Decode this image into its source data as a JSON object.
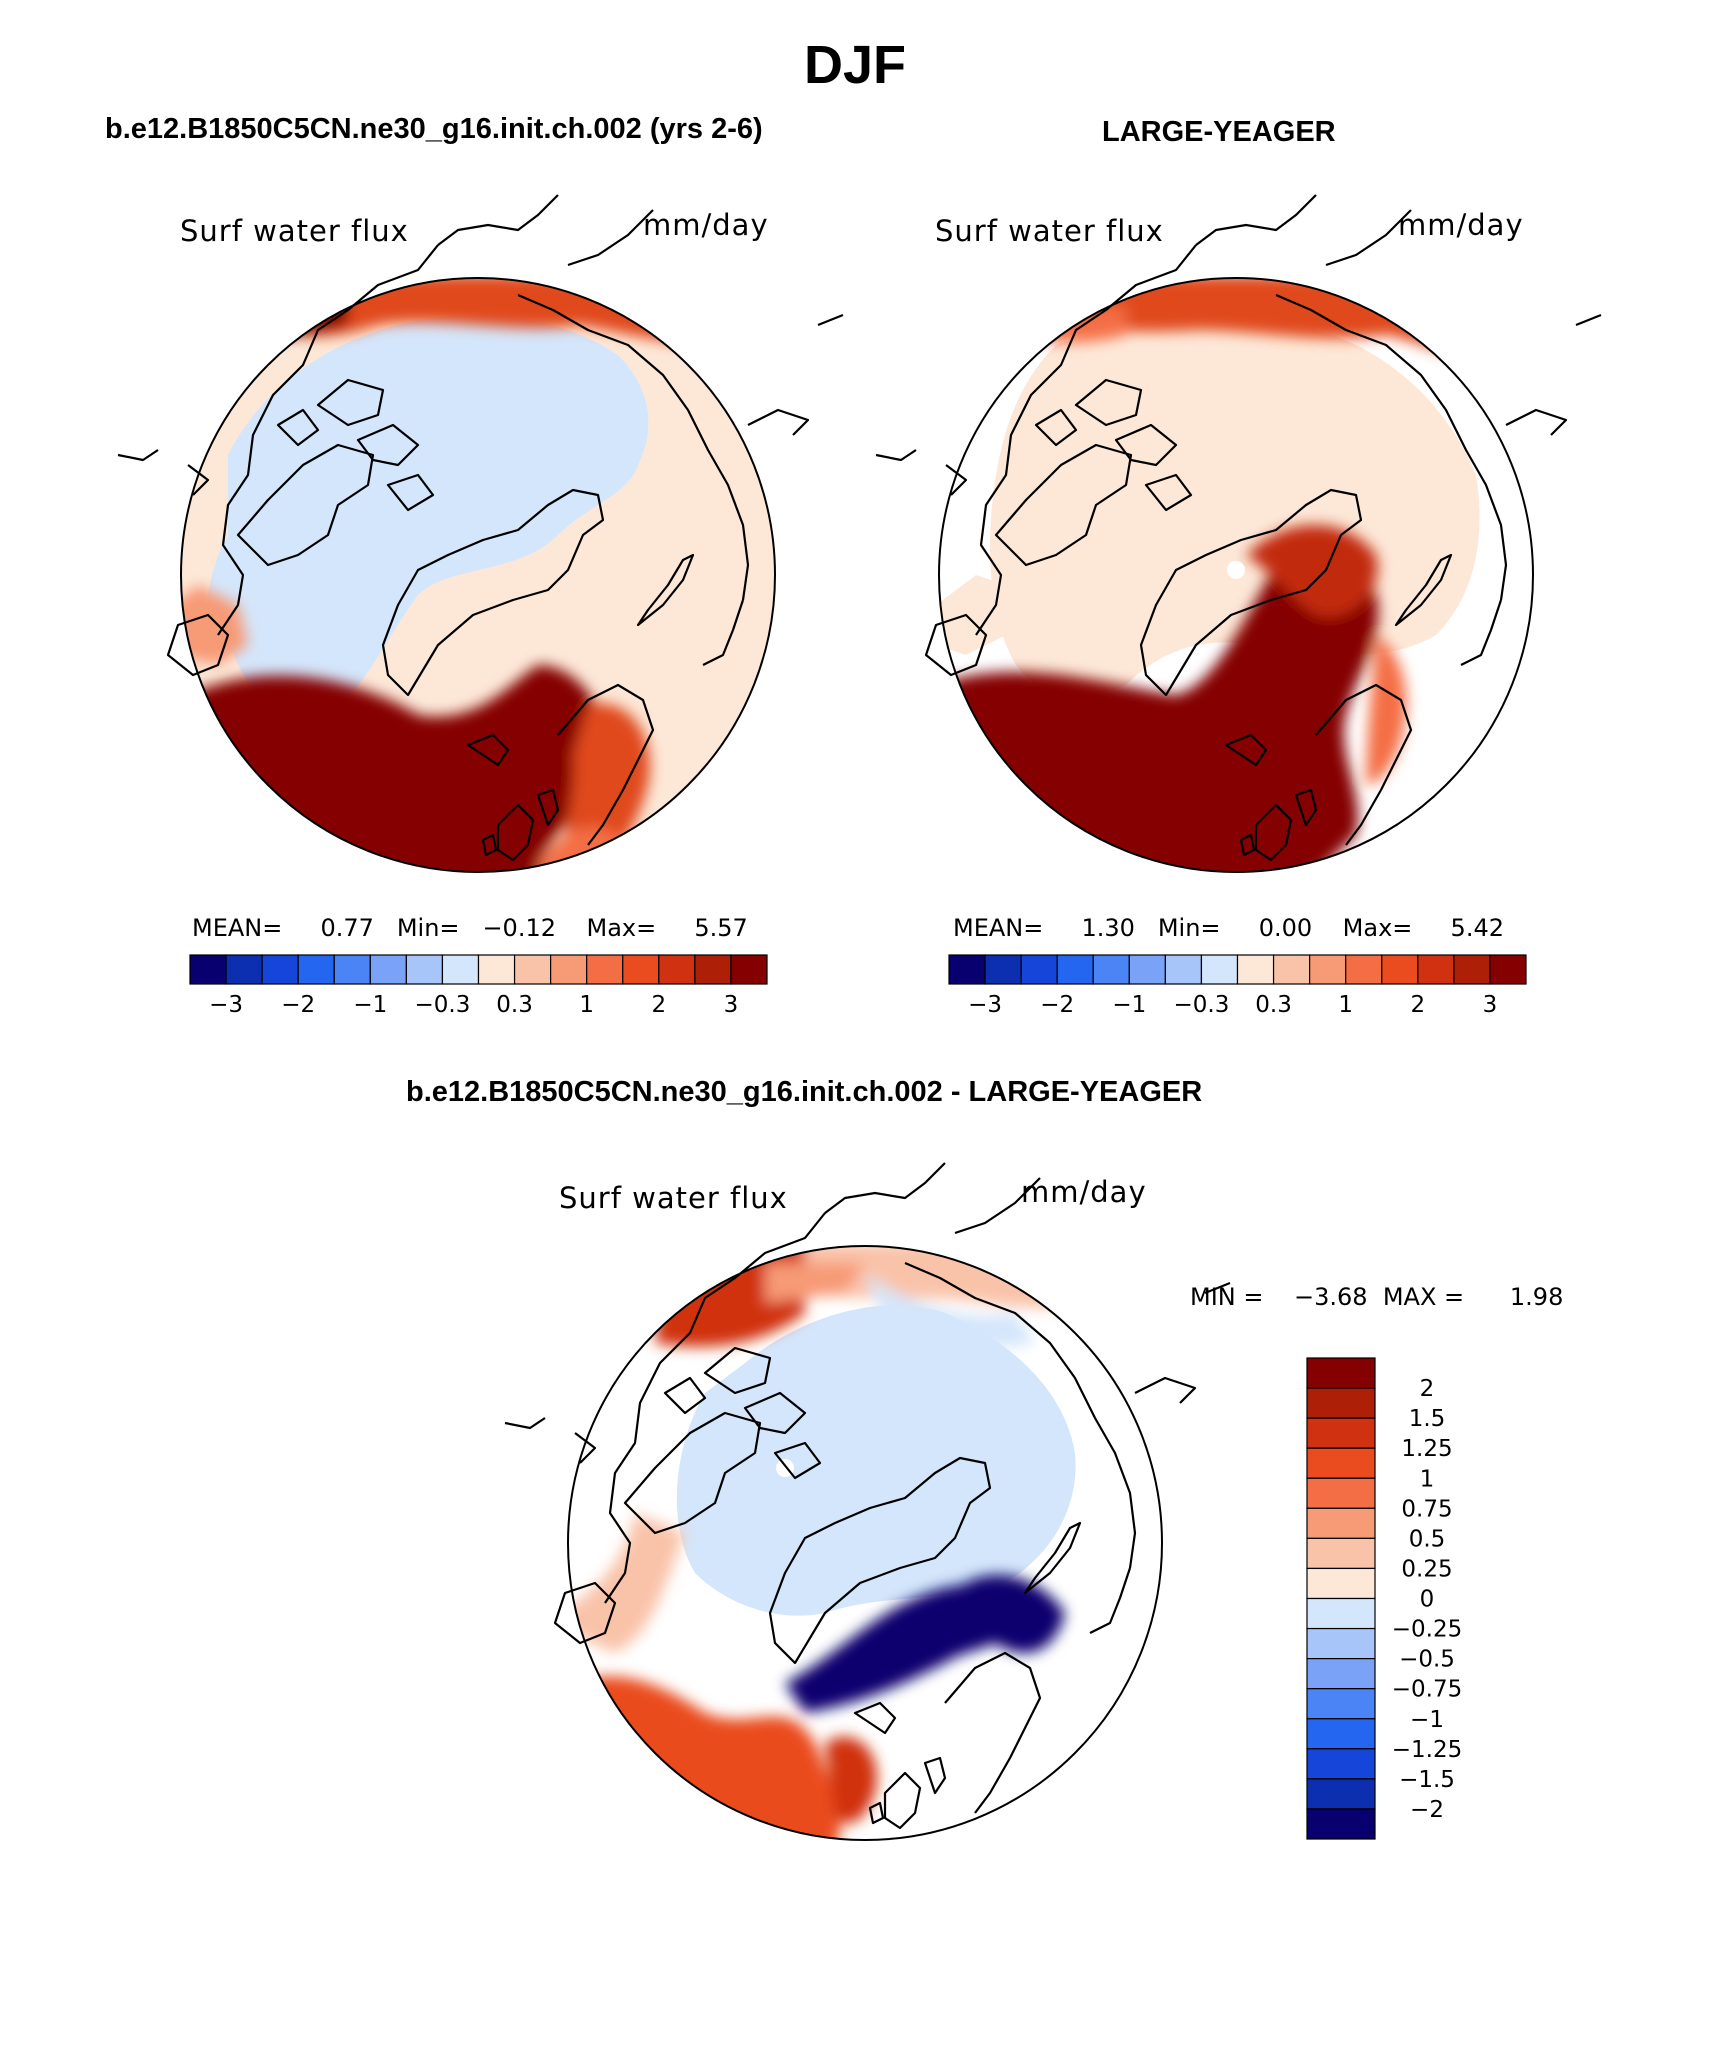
{
  "main_title": "DJF",
  "panels": [
    {
      "title": "b.e12.B1850C5CN.ne30_g16.init.ch.002 (yrs 2-6)",
      "variable": "Surf water flux",
      "units": "mm/day",
      "stats": {
        "mean_label": "MEAN=",
        "mean": "0.77",
        "min_label": "Min=",
        "min": "−0.12",
        "max_label": "Max=",
        "max": "5.57"
      }
    },
    {
      "title": "LARGE-YEAGER",
      "variable": "Surf water flux",
      "units": "mm/day",
      "stats": {
        "mean_label": "MEAN=",
        "mean": "1.30",
        "min_label": "Min=",
        "min": "0.00",
        "max_label": "Max=",
        "max": "5.42"
      }
    },
    {
      "title": "b.e12.B1850C5CN.ne30_g16.init.ch.002 - LARGE-YEAGER",
      "variable": "Surf water flux",
      "units": "mm/day",
      "minmax": {
        "min_label": "MIN =",
        "min": "−3.68",
        "max_label": "MAX =",
        "max": "1.98"
      }
    }
  ],
  "horizontal_colorbar": {
    "colors": [
      "#08006e",
      "#0c2fb0",
      "#1546d9",
      "#2466f0",
      "#4a84f5",
      "#7aa3f7",
      "#a8c5fa",
      "#d4e6fb",
      "#fde8d8",
      "#f9c3a9",
      "#f79a76",
      "#f46e45",
      "#ea4b1f",
      "#d03211",
      "#ad1f07",
      "#850000"
    ],
    "tick_labels": [
      "−3",
      "−2",
      "−1",
      "−0.3",
      "0.3",
      "1",
      "2",
      "3"
    ]
  },
  "vertical_colorbar": {
    "colors": [
      "#850000",
      "#ad1f07",
      "#d03211",
      "#ea4b1f",
      "#f46e45",
      "#f79a76",
      "#f9c3a9",
      "#fde8d8",
      "#d4e6fb",
      "#a8c5fa",
      "#7aa3f7",
      "#4a84f5",
      "#2466f0",
      "#1546d9",
      "#0c2fb0",
      "#08006e"
    ],
    "tick_labels": [
      "2",
      "1.5",
      "1.25",
      "1",
      "0.75",
      "0.5",
      "0.25",
      "0",
      "−0.25",
      "−0.5",
      "−0.75",
      "−1",
      "−1.25",
      "−1.5",
      "−2"
    ]
  }
}
